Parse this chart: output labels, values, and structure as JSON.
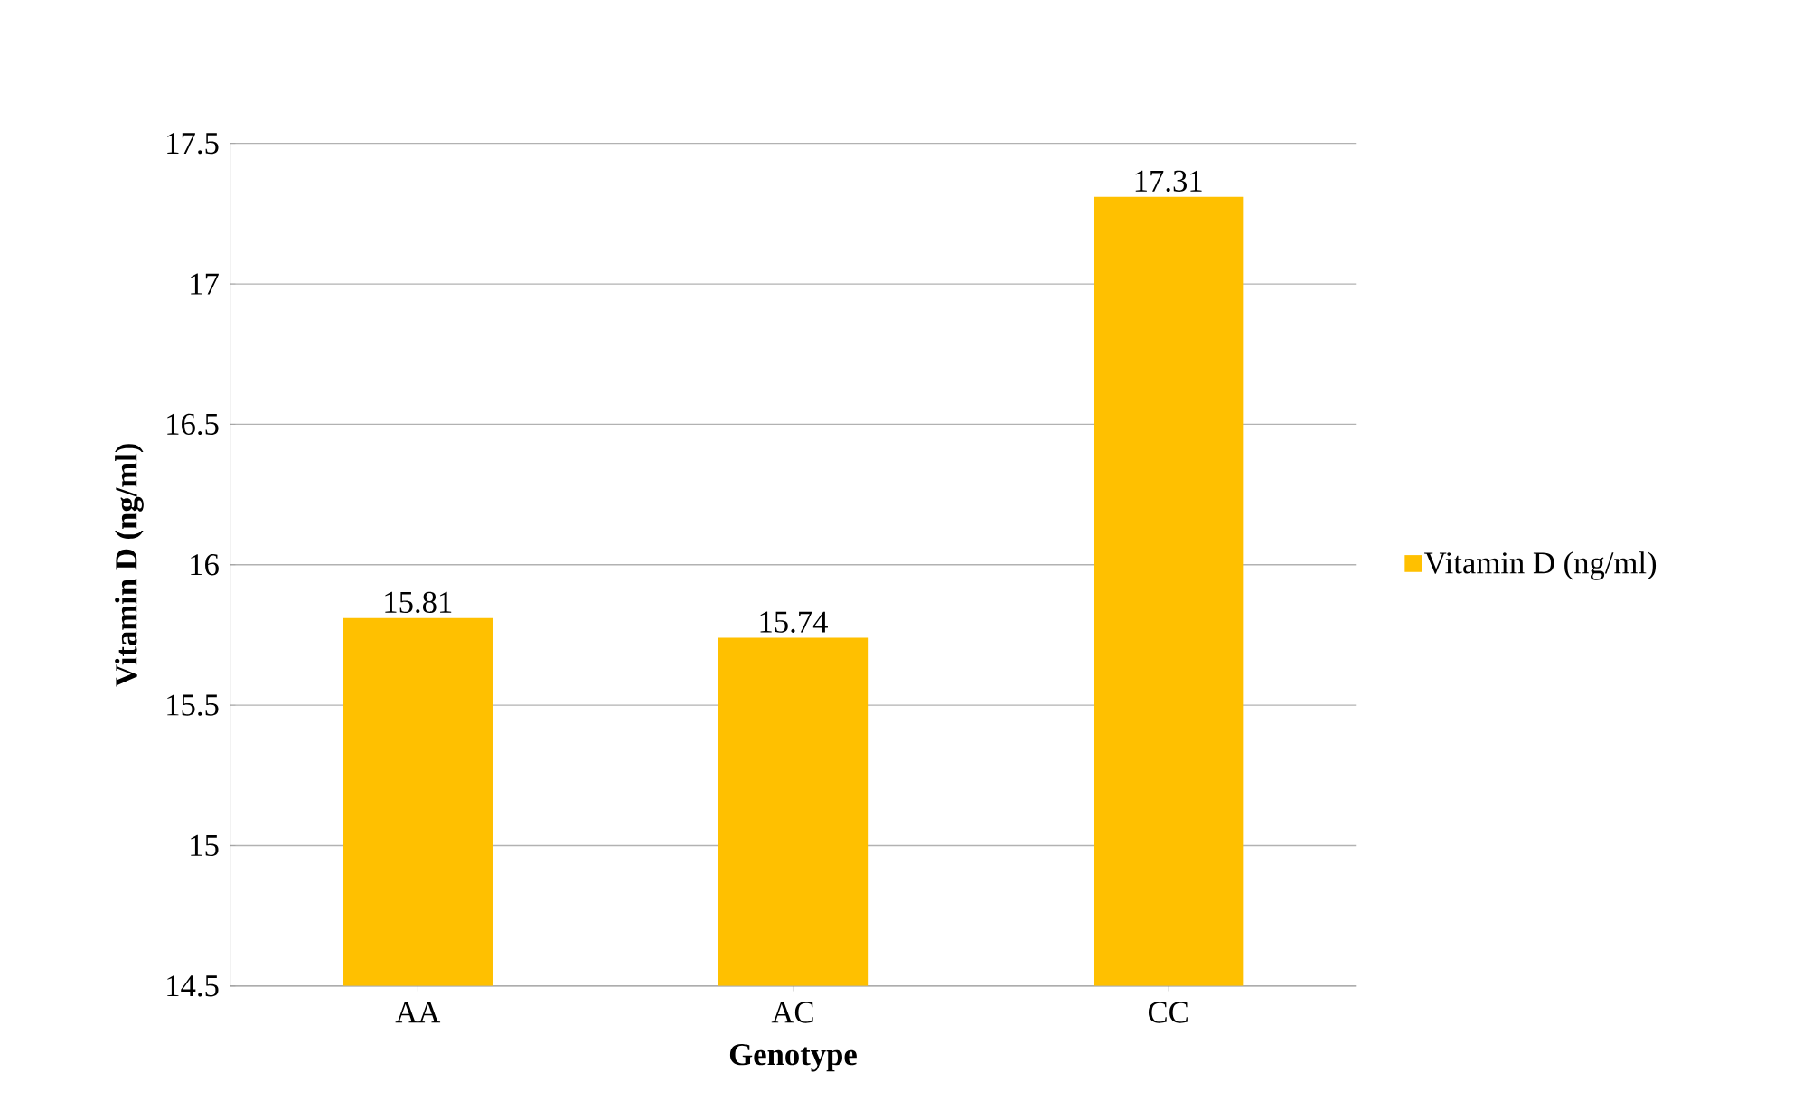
{
  "chart_data": {
    "type": "bar",
    "xlabel": "Genotype",
    "ylabel": "Vitamin D (ng/ml)",
    "categories": [
      "AA",
      "AC",
      "CC"
    ],
    "series": [
      {
        "name": "Vitamin D (ng/ml)",
        "color": "#ffc000",
        "values": [
          15.81,
          15.74,
          17.31
        ]
      }
    ],
    "ylim": [
      14.5,
      17.5
    ],
    "yticks": [
      14.5,
      15,
      15.5,
      16,
      16.5,
      17,
      17.5
    ],
    "grid": "y",
    "legend": "right",
    "data_labels": true
  }
}
